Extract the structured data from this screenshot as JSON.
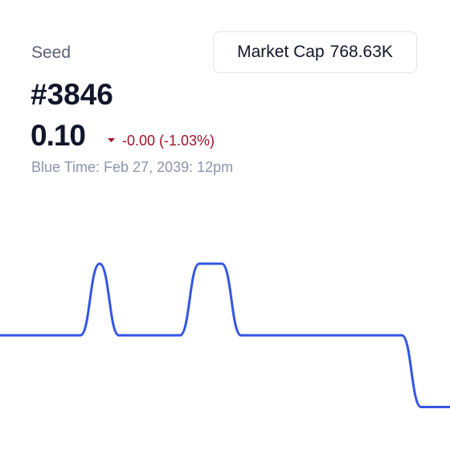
{
  "header": {
    "label": "Seed",
    "title": "#3846",
    "price": "0.10",
    "change": "-0.00 (-1.03%)",
    "time": "Blue Time: Feb 27, 2039: 12pm",
    "market_cap_label": "Market Cap",
    "market_cap_value": "768.63K"
  },
  "chart_data": {
    "type": "line",
    "x": [
      0,
      25,
      31,
      37,
      56,
      62,
      69,
      75,
      125,
      131,
      140
    ],
    "series": [
      {
        "color": "#3356e6",
        "values": [
          0.104,
          0.104,
          0.105,
          0.104,
          0.104,
          0.105,
          0.105,
          0.104,
          0.104,
          0.103,
          0.103
        ]
      }
    ],
    "xlim": [
      0,
      140
    ],
    "ylim": [
      0.1024,
      0.1061
    ]
  }
}
